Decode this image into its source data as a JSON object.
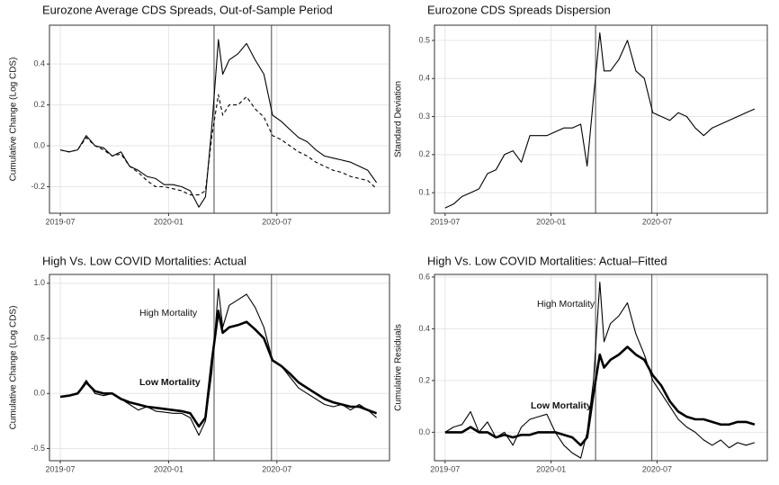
{
  "chart_data": [
    {
      "type": "line",
      "title": "Eurozone Average CDS Spreads, Out-of-Sample Period",
      "ylabel": "Cumulative Change (Log CDS)",
      "x": [
        2019.5,
        2019.54,
        2019.58,
        2019.62,
        2019.66,
        2019.7,
        2019.74,
        2019.78,
        2019.82,
        2019.86,
        2019.9,
        2019.94,
        2019.98,
        2020.02,
        2020.06,
        2020.1,
        2020.14,
        2020.17,
        2020.2,
        2020.23,
        2020.25,
        2020.28,
        2020.32,
        2020.36,
        2020.4,
        2020.44,
        2020.48,
        2020.52,
        2020.56,
        2020.6,
        2020.64,
        2020.68,
        2020.72,
        2020.76,
        2020.8,
        2020.84,
        2020.88,
        2020.92,
        2020.96
      ],
      "xlim": [
        2019.45,
        2021.02
      ],
      "xticks": [
        {
          "value": 2019.5,
          "label": "2019-07"
        },
        {
          "value": 2020,
          "label": "2020-01"
        },
        {
          "value": 2020.5,
          "label": "2020-07"
        }
      ],
      "ylim": [
        -0.33,
        0.59
      ],
      "yticks": [
        {
          "value": -0.2,
          "label": "-0.2"
        },
        {
          "value": 0,
          "label": "0.0"
        },
        {
          "value": 0.2,
          "label": "0.2"
        },
        {
          "value": 0.4,
          "label": "0.4"
        }
      ],
      "vlines": [
        2020.21,
        2020.475
      ],
      "grid": true,
      "series": [
        {
          "color": "#000000",
          "style": "solid",
          "values": [
            -0.02,
            -0.03,
            -0.02,
            0.05,
            0.0,
            -0.01,
            -0.05,
            -0.03,
            -0.1,
            -0.12,
            -0.15,
            -0.16,
            -0.19,
            -0.19,
            -0.2,
            -0.22,
            -0.3,
            -0.25,
            0.1,
            0.52,
            0.35,
            0.42,
            0.45,
            0.5,
            0.42,
            0.35,
            0.15,
            0.12,
            0.08,
            0.04,
            0.02,
            -0.02,
            -0.05,
            -0.06,
            -0.07,
            -0.08,
            -0.1,
            -0.12,
            -0.18
          ]
        },
        {
          "color": "#000000",
          "style": "dashed",
          "values": [
            -0.02,
            -0.03,
            -0.02,
            0.04,
            0.0,
            -0.02,
            -0.05,
            -0.04,
            -0.1,
            -0.13,
            -0.17,
            -0.2,
            -0.2,
            -0.21,
            -0.22,
            -0.24,
            -0.24,
            -0.22,
            0.05,
            0.25,
            0.15,
            0.2,
            0.2,
            0.24,
            0.18,
            0.14,
            0.05,
            0.03,
            0.0,
            -0.03,
            -0.05,
            -0.08,
            -0.1,
            -0.12,
            -0.13,
            -0.15,
            -0.16,
            -0.17,
            -0.21
          ]
        }
      ]
    },
    {
      "type": "line",
      "title": "Eurozone CDS Spreads Dispersion",
      "ylabel": "Standard Deviation",
      "x": [
        2019.5,
        2019.54,
        2019.58,
        2019.62,
        2019.66,
        2019.7,
        2019.74,
        2019.78,
        2019.82,
        2019.86,
        2019.9,
        2019.94,
        2019.98,
        2020.02,
        2020.06,
        2020.1,
        2020.14,
        2020.17,
        2020.2,
        2020.23,
        2020.25,
        2020.28,
        2020.32,
        2020.36,
        2020.4,
        2020.44,
        2020.48,
        2020.52,
        2020.56,
        2020.6,
        2020.64,
        2020.68,
        2020.72,
        2020.76,
        2020.8,
        2020.84,
        2020.88,
        2020.92,
        2020.96
      ],
      "xlim": [
        2019.45,
        2021.02
      ],
      "xticks": [
        {
          "value": 2019.5,
          "label": "2019-07"
        },
        {
          "value": 2020,
          "label": "2020-01"
        },
        {
          "value": 2020.5,
          "label": "2020-07"
        }
      ],
      "ylim": [
        0.046,
        0.54
      ],
      "yticks": [
        0.1,
        0.2,
        0.3,
        0.4,
        0.5
      ],
      "vlines": [
        2020.21,
        2020.475
      ],
      "grid": true,
      "series": [
        {
          "color": "#000000",
          "style": "solid",
          "values": [
            0.06,
            0.07,
            0.09,
            0.1,
            0.11,
            0.15,
            0.16,
            0.2,
            0.21,
            0.18,
            0.25,
            0.25,
            0.25,
            0.26,
            0.27,
            0.27,
            0.28,
            0.17,
            0.35,
            0.52,
            0.42,
            0.42,
            0.45,
            0.5,
            0.42,
            0.4,
            0.31,
            0.3,
            0.29,
            0.31,
            0.3,
            0.27,
            0.25,
            0.27,
            0.28,
            0.29,
            0.3,
            0.31,
            0.32
          ]
        }
      ]
    },
    {
      "type": "line",
      "title": "High Vs. Low COVID Mortalities: Actual",
      "ylabel": "Cumulative Change (Log CDS)",
      "x": [
        2019.5,
        2019.54,
        2019.58,
        2019.62,
        2019.66,
        2019.7,
        2019.74,
        2019.78,
        2019.82,
        2019.86,
        2019.9,
        2019.94,
        2019.98,
        2020.02,
        2020.06,
        2020.1,
        2020.14,
        2020.17,
        2020.2,
        2020.23,
        2020.25,
        2020.28,
        2020.32,
        2020.36,
        2020.4,
        2020.44,
        2020.48,
        2020.52,
        2020.56,
        2020.6,
        2020.64,
        2020.68,
        2020.72,
        2020.76,
        2020.8,
        2020.84,
        2020.88,
        2020.92,
        2020.96
      ],
      "xlim": [
        2019.45,
        2021.02
      ],
      "xticks": [
        {
          "value": 2019.5,
          "label": "2019-07"
        },
        {
          "value": 2020,
          "label": "2020-01"
        },
        {
          "value": 2020.5,
          "label": "2020-07"
        }
      ],
      "ylim": [
        -0.61,
        1.08
      ],
      "yticks": [
        -0.5,
        {
          "value": 0,
          "label": "0.0"
        },
        0.5,
        {
          "value": 1,
          "label": "1.0"
        }
      ],
      "vlines": [
        2020.21,
        2020.475
      ],
      "grid": true,
      "series": [
        {
          "name": "High Mortality",
          "color": "#000000",
          "style": "solid",
          "values": [
            -0.03,
            -0.02,
            0.0,
            0.12,
            0.0,
            -0.02,
            0.0,
            -0.05,
            -0.1,
            -0.15,
            -0.12,
            -0.16,
            -0.17,
            -0.18,
            -0.18,
            -0.22,
            -0.38,
            -0.25,
            0.2,
            0.95,
            0.6,
            0.8,
            0.85,
            0.9,
            0.78,
            0.6,
            0.3,
            0.25,
            0.15,
            0.05,
            0.0,
            -0.05,
            -0.1,
            -0.12,
            -0.1,
            -0.15,
            -0.1,
            -0.15,
            -0.22
          ]
        },
        {
          "name": "Low Mortality",
          "color": "#000000",
          "style": "thick",
          "values": [
            -0.03,
            -0.02,
            0.0,
            0.1,
            0.02,
            0.0,
            0.0,
            -0.05,
            -0.08,
            -0.1,
            -0.12,
            -0.13,
            -0.14,
            -0.15,
            -0.16,
            -0.18,
            -0.3,
            -0.22,
            0.3,
            0.75,
            0.55,
            0.6,
            0.62,
            0.65,
            0.58,
            0.5,
            0.3,
            0.25,
            0.18,
            0.1,
            0.05,
            0.0,
            -0.05,
            -0.08,
            -0.1,
            -0.12,
            -0.12,
            -0.15,
            -0.18
          ]
        }
      ]
    },
    {
      "type": "line",
      "title": "High Vs. Low COVID Mortalities: Actual–Fitted",
      "ylabel": "Cumulative Residuals",
      "x": [
        2019.5,
        2019.54,
        2019.58,
        2019.62,
        2019.66,
        2019.7,
        2019.74,
        2019.78,
        2019.82,
        2019.86,
        2019.9,
        2019.94,
        2019.98,
        2020.02,
        2020.06,
        2020.1,
        2020.14,
        2020.17,
        2020.2,
        2020.23,
        2020.25,
        2020.28,
        2020.32,
        2020.36,
        2020.4,
        2020.44,
        2020.48,
        2020.52,
        2020.56,
        2020.6,
        2020.64,
        2020.68,
        2020.72,
        2020.76,
        2020.8,
        2020.84,
        2020.88,
        2020.92,
        2020.96
      ],
      "xlim": [
        2019.45,
        2021.02
      ],
      "xticks": [
        {
          "value": 2019.5,
          "label": "2019-07"
        },
        {
          "value": 2020,
          "label": "2020-01"
        },
        {
          "value": 2020.5,
          "label": "2020-07"
        }
      ],
      "ylim": [
        -0.11,
        0.61
      ],
      "yticks": [
        {
          "value": 0,
          "label": "0.0"
        },
        0.2,
        0.4,
        0.6
      ],
      "vlines": [
        2020.21,
        2020.475
      ],
      "grid": true,
      "series": [
        {
          "name": "High Mortality",
          "color": "#000000",
          "style": "solid",
          "values": [
            0.0,
            0.02,
            0.03,
            0.08,
            0.0,
            0.04,
            -0.02,
            0.0,
            -0.05,
            0.02,
            0.05,
            0.06,
            0.07,
            0.0,
            -0.05,
            -0.08,
            -0.1,
            0.0,
            0.2,
            0.58,
            0.35,
            0.42,
            0.45,
            0.5,
            0.38,
            0.3,
            0.2,
            0.15,
            0.1,
            0.05,
            0.02,
            0.0,
            -0.03,
            -0.05,
            -0.03,
            -0.06,
            -0.04,
            -0.05,
            -0.04
          ]
        },
        {
          "name": "Low Mortality",
          "color": "#000000",
          "style": "thick",
          "values": [
            0.0,
            0.0,
            0.0,
            0.02,
            0.0,
            0.0,
            -0.02,
            -0.01,
            -0.02,
            -0.01,
            -0.01,
            0.0,
            0.0,
            0.0,
            -0.01,
            -0.02,
            -0.05,
            -0.02,
            0.15,
            0.3,
            0.25,
            0.28,
            0.3,
            0.33,
            0.3,
            0.28,
            0.22,
            0.18,
            0.12,
            0.08,
            0.06,
            0.05,
            0.05,
            0.04,
            0.03,
            0.03,
            0.04,
            0.04,
            0.03
          ]
        }
      ]
    }
  ]
}
